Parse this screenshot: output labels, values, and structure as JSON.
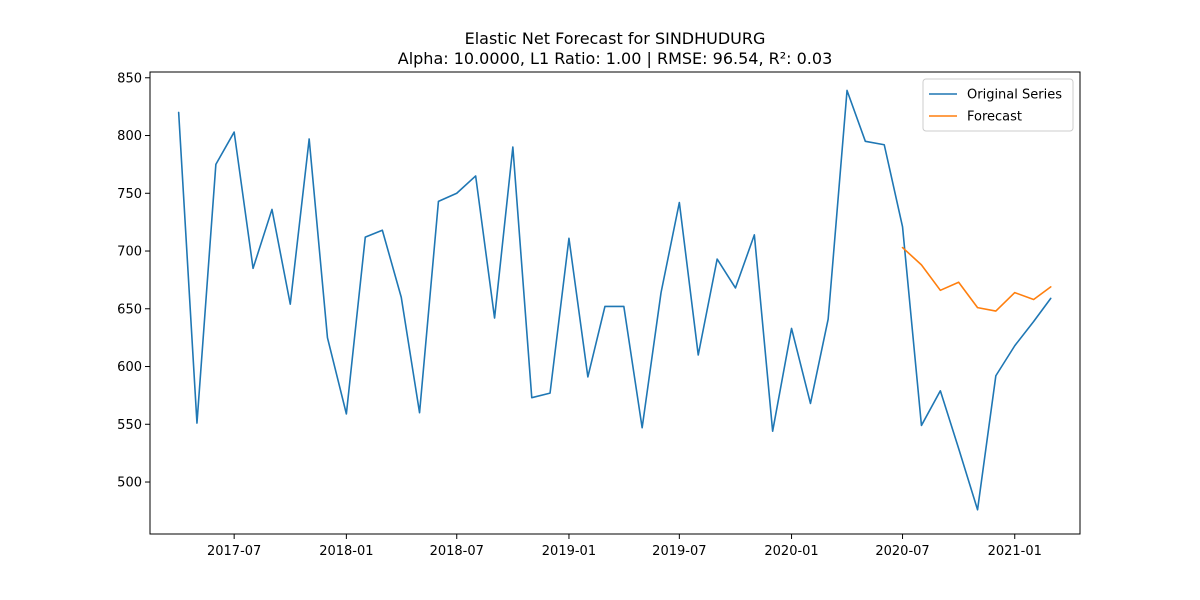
{
  "chart_data": {
    "type": "line",
    "title": "Elastic Net Forecast for SINDHUDURG",
    "subtitle": "Alpha: 10.0000, L1 Ratio: 1.00 | RMSE: 96.54, R²: 0.03",
    "xlabel": "",
    "ylabel": "",
    "xlim": [
      "2017-02-13",
      "2021-04-18"
    ],
    "ylim": [
      455,
      855
    ],
    "xticks": [
      "2017-07",
      "2018-01",
      "2018-07",
      "2019-01",
      "2019-07",
      "2020-01",
      "2020-07",
      "2021-01"
    ],
    "yticks": [
      500,
      550,
      600,
      650,
      700,
      750,
      800,
      850
    ],
    "grid": false,
    "legend": "top-right",
    "series": [
      {
        "name": "Original Series",
        "color": "#1f77b4",
        "x": [
          "2017-04-01",
          "2017-05-01",
          "2017-06-01",
          "2017-07-01",
          "2017-08-01",
          "2017-09-01",
          "2017-10-01",
          "2017-11-01",
          "2017-12-01",
          "2018-01-01",
          "2018-02-01",
          "2018-03-01",
          "2018-04-01",
          "2018-05-01",
          "2018-06-01",
          "2018-07-01",
          "2018-08-01",
          "2018-09-01",
          "2018-10-01",
          "2018-11-01",
          "2018-12-01",
          "2019-01-01",
          "2019-02-01",
          "2019-03-01",
          "2019-04-01",
          "2019-05-01",
          "2019-06-01",
          "2019-07-01",
          "2019-08-01",
          "2019-09-01",
          "2019-10-01",
          "2019-11-01",
          "2019-12-01",
          "2020-01-01",
          "2020-02-01",
          "2020-03-01",
          "2020-04-01",
          "2020-05-01",
          "2020-06-01",
          "2020-07-01",
          "2020-08-01",
          "2020-09-01",
          "2020-10-01",
          "2020-11-01",
          "2020-12-01",
          "2021-01-01",
          "2021-02-01",
          "2021-03-01"
        ],
        "values": [
          820,
          551,
          775,
          803,
          685,
          736,
          654,
          797,
          625,
          559,
          712,
          718,
          660,
          560,
          743,
          750,
          765,
          642,
          790,
          573,
          577,
          711,
          591,
          652,
          652,
          547,
          664,
          742,
          610,
          693,
          668,
          714,
          544,
          633,
          568,
          641,
          839,
          795,
          792,
          721,
          549,
          579,
          529,
          476,
          592,
          618,
          639,
          659
        ]
      },
      {
        "name": "Forecast",
        "color": "#ff7f0e",
        "x": [
          "2020-07-01",
          "2020-08-01",
          "2020-09-01",
          "2020-10-01",
          "2020-11-01",
          "2020-12-01",
          "2021-01-01",
          "2021-02-01",
          "2021-03-01"
        ],
        "values": [
          703,
          688,
          666,
          673,
          651,
          648,
          664,
          658,
          669
        ]
      }
    ]
  }
}
